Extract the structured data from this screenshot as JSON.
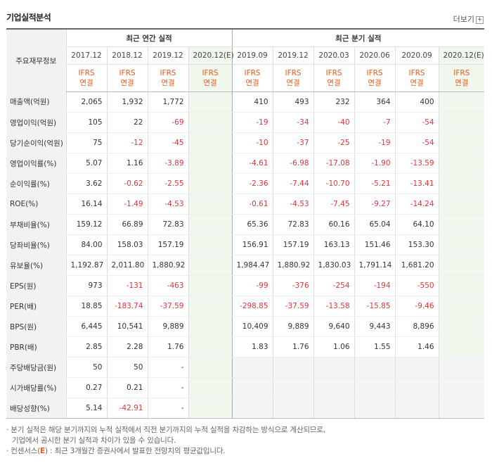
{
  "title": "기업실적분석",
  "more_label": "더보기",
  "corner_label": "주요재무정보",
  "annual_label": "최근 연간 실적",
  "quarter_label": "최근 분기 실적",
  "annual_periods": [
    "2017.12",
    "2018.12",
    "2019.12",
    "2020.12(E)"
  ],
  "quarter_periods": [
    "2019.09",
    "2019.12",
    "2020.03",
    "2020.06",
    "2020.09",
    "2020.12(E)"
  ],
  "ifrs_line1": "IFRS",
  "ifrs_line2": "연결",
  "rows": [
    {
      "label": "매출액(억원)",
      "annual": [
        "2,065",
        "1,932",
        "1,772",
        ""
      ],
      "quarter": [
        "410",
        "493",
        "232",
        "364",
        "400",
        ""
      ],
      "group_start": true
    },
    {
      "label": "영업이익(억원)",
      "annual": [
        "105",
        "22",
        "-69",
        ""
      ],
      "quarter": [
        "-19",
        "-34",
        "-40",
        "-7",
        "-54",
        ""
      ]
    },
    {
      "label": "당기순이익(억원)",
      "annual": [
        "75",
        "-12",
        "-45",
        ""
      ],
      "quarter": [
        "-10",
        "-37",
        "-25",
        "-19",
        "-54",
        ""
      ]
    },
    {
      "label": "영업이익률(%)",
      "annual": [
        "5.07",
        "1.16",
        "-3.89",
        ""
      ],
      "quarter": [
        "-4.61",
        "-6.98",
        "-17.08",
        "-1.90",
        "-13.59",
        ""
      ],
      "group_start": true
    },
    {
      "label": "순이익률(%)",
      "annual": [
        "3.62",
        "-0.62",
        "-2.55",
        ""
      ],
      "quarter": [
        "-2.36",
        "-7.44",
        "-10.70",
        "-5.21",
        "-13.41",
        ""
      ]
    },
    {
      "label": "ROE(%)",
      "annual": [
        "16.14",
        "-1.49",
        "-4.53",
        ""
      ],
      "quarter": [
        "-0.61",
        "-4.53",
        "-7.45",
        "-9.27",
        "-14.24",
        ""
      ]
    },
    {
      "label": "부채비율(%)",
      "annual": [
        "159.12",
        "66.89",
        "72.83",
        ""
      ],
      "quarter": [
        "65.36",
        "72.83",
        "60.16",
        "65.04",
        "64.10",
        ""
      ],
      "group_start": true
    },
    {
      "label": "당좌비율(%)",
      "annual": [
        "84.00",
        "158.03",
        "157.19",
        ""
      ],
      "quarter": [
        "156.91",
        "157.19",
        "163.13",
        "151.46",
        "153.30",
        ""
      ]
    },
    {
      "label": "유보율(%)",
      "annual": [
        "1,192.87",
        "2,011.80",
        "1,880.92",
        ""
      ],
      "quarter": [
        "1,984.47",
        "1,880.92",
        "1,830.03",
        "1,791.14",
        "1,681.20",
        ""
      ]
    },
    {
      "label": "EPS(원)",
      "annual": [
        "973",
        "-131",
        "-463",
        ""
      ],
      "quarter": [
        "-99",
        "-376",
        "-254",
        "-194",
        "-550",
        ""
      ],
      "group_start": true
    },
    {
      "label": "PER(배)",
      "annual": [
        "18.85",
        "-183.74",
        "-37.59",
        ""
      ],
      "quarter": [
        "-298.85",
        "-37.59",
        "-13.58",
        "-15.85",
        "-9.46",
        ""
      ]
    },
    {
      "label": "BPS(원)",
      "annual": [
        "6,445",
        "10,541",
        "9,889",
        ""
      ],
      "quarter": [
        "10,409",
        "9,889",
        "9,640",
        "9,443",
        "8,896",
        ""
      ]
    },
    {
      "label": "PBR(배)",
      "annual": [
        "2.85",
        "2.28",
        "1.76",
        ""
      ],
      "quarter": [
        "1.83",
        "1.76",
        "1.06",
        "1.55",
        "1.46",
        ""
      ]
    },
    {
      "label": "주당배당금(원)",
      "annual": [
        "50",
        "50",
        "-",
        ""
      ],
      "quarter": null,
      "group_start": true
    },
    {
      "label": "시가배당률(%)",
      "annual": [
        "0.27",
        "0.21",
        "-",
        ""
      ],
      "quarter": null
    },
    {
      "label": "배당성향(%)",
      "annual": [
        "5.14",
        "-42.91",
        "-",
        ""
      ],
      "quarter": null
    }
  ],
  "footnote1": "분기 실적은 해당 분기까지의 누적 실적에서 직전 분기까지의 누적 실적을 차감하는 방식으로 계산되므로,",
  "footnote1b": "기업에서 공시한 분기 실적과 차이가 있을 수 있습니다.",
  "footnote2_prefix": "컨센서스(",
  "footnote2_e": "E",
  "footnote2_suffix": ") : 최근 3개월간 증권사에서 발표한 전망치의 평균값입니다.",
  "colors": {
    "accent": "#e85a1a",
    "negative": "#e8323a",
    "estimate_bg": "#f0f7ec",
    "label_bg": "#f2f2f2"
  }
}
